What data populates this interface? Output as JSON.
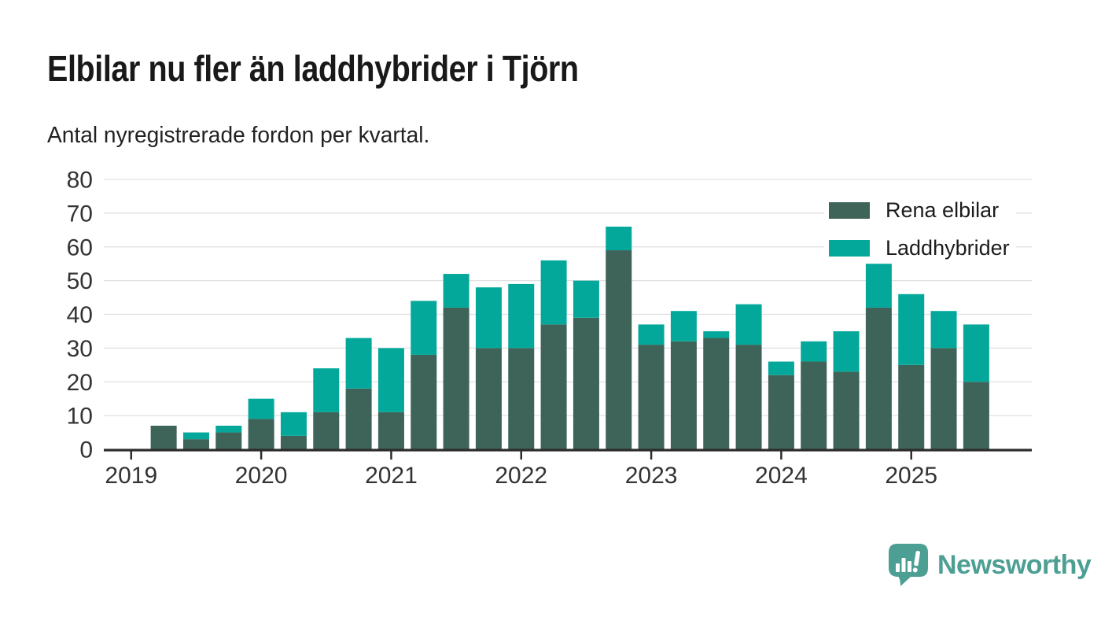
{
  "header": {
    "title": "Elbilar nu fler än laddhybrider i Tjörn",
    "subtitle": "Antal nyregistrerade fordon per kvartal."
  },
  "chart_data": {
    "type": "bar",
    "stacked": true,
    "title": "Elbilar nu fler än laddhybrider i Tjörn",
    "subtitle": "Antal nyregistrerade fordon per kvartal.",
    "x_unit": "quarter",
    "categories": [
      "2019 Q1",
      "2019 Q2",
      "2019 Q3",
      "2019 Q4",
      "2020 Q1",
      "2020 Q2",
      "2020 Q3",
      "2020 Q4",
      "2021 Q1",
      "2021 Q2",
      "2021 Q3",
      "2021 Q4",
      "2022 Q1",
      "2022 Q2",
      "2022 Q3",
      "2022 Q4",
      "2023 Q1",
      "2023 Q2",
      "2023 Q3",
      "2023 Q4",
      "2024 Q1",
      "2024 Q2",
      "2024 Q3",
      "2024 Q4",
      "2025 Q1",
      "2025 Q2",
      "2025 Q3"
    ],
    "series": [
      {
        "name": "Rena elbilar",
        "color": "#3e6358",
        "values": [
          0,
          7,
          3,
          5,
          9,
          4,
          11,
          18,
          11,
          28,
          42,
          30,
          30,
          37,
          39,
          59,
          31,
          32,
          33,
          31,
          22,
          26,
          23,
          42,
          25,
          30,
          20
        ]
      },
      {
        "name": "Laddhybrider",
        "color": "#04a89b",
        "values": [
          0,
          0,
          2,
          2,
          6,
          7,
          13,
          15,
          19,
          16,
          10,
          18,
          19,
          19,
          11,
          7,
          6,
          9,
          2,
          12,
          4,
          6,
          12,
          13,
          21,
          11,
          17
        ]
      }
    ],
    "totals": [
      0,
      7,
      5,
      7,
      15,
      11,
      24,
      33,
      30,
      44,
      52,
      48,
      49,
      56,
      50,
      66,
      37,
      41,
      35,
      43,
      26,
      32,
      35,
      55,
      46,
      41,
      37
    ],
    "x_year_labels": [
      "2019",
      "2020",
      "2021",
      "2022",
      "2023",
      "2024",
      "2025"
    ],
    "ylim": [
      0,
      80
    ],
    "ytick_step": 10,
    "grid": "horizontal",
    "legend_position": "top-right",
    "axis_color": "#2d2d2d",
    "grid_color": "#e0e0e0",
    "tick_label_color": "#333333"
  },
  "footer": {
    "brand": "Newsworthy",
    "brand_color": "#4d9f93"
  }
}
